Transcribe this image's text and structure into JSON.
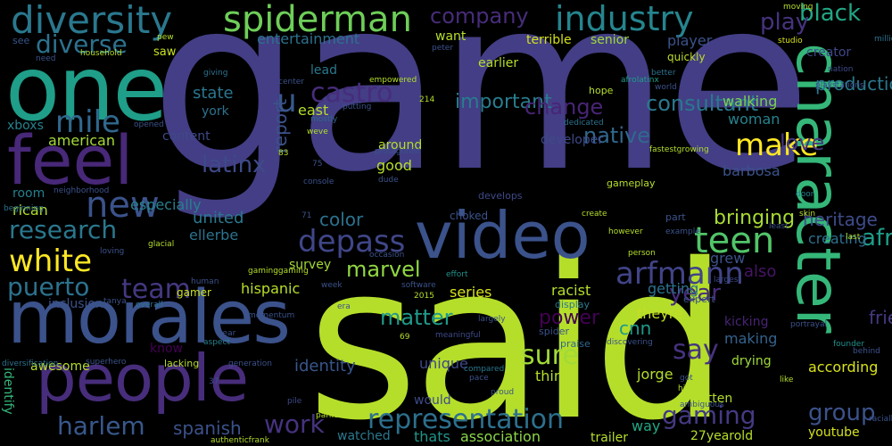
{
  "background": "#000000",
  "palette": [
    "#46327e",
    "#3b528b",
    "#365c8d",
    "#2c728e",
    "#21908d",
    "#1fa187",
    "#35b779",
    "#6ece58",
    "#b5de2b",
    "#d0e11c",
    "#440154",
    "#482878"
  ],
  "words": [
    {
      "id": "game",
      "text": "game",
      "color": "#433e85"
    },
    {
      "id": "said",
      "text": "said",
      "color": "#b5de2b"
    },
    {
      "id": "video",
      "text": "video",
      "color": "#3b528b"
    },
    {
      "id": "one",
      "text": "one",
      "color": "#1f9e89"
    },
    {
      "id": "morales",
      "text": "morales",
      "color": "#3b528b"
    },
    {
      "id": "people",
      "text": "people",
      "color": "#472d7b"
    },
    {
      "id": "character",
      "text": "character",
      "color": "#35b779"
    },
    {
      "id": "feel",
      "text": "feel",
      "color": "#482878"
    },
    {
      "id": "diversity",
      "text": "diversity",
      "color": "#2a788e"
    },
    {
      "id": "spiderman",
      "text": "spiderman",
      "color": "#6ece58"
    },
    {
      "id": "industry",
      "text": "industry",
      "color": "#25858e"
    },
    {
      "id": "diverse",
      "text": "diverse",
      "color": "#2c728e"
    },
    {
      "id": "company",
      "text": "company",
      "color": "#472c7a"
    },
    {
      "id": "play",
      "text": "play",
      "color": "#46337e"
    },
    {
      "id": "black",
      "text": "black",
      "color": "#22a785"
    },
    {
      "id": "mile",
      "text": "mile",
      "color": "#31688e"
    },
    {
      "id": "castro",
      "text": "castro",
      "color": "#472d7b"
    },
    {
      "id": "u",
      "text": "u",
      "color": "#38598c"
    },
    {
      "id": "make",
      "text": "make",
      "color": "#fde725"
    },
    {
      "id": "new",
      "text": "new",
      "color": "#3b528b"
    },
    {
      "id": "latinx",
      "text": "latinx",
      "color": "#3e4a89"
    },
    {
      "id": "depass",
      "text": "depass",
      "color": "#404688"
    },
    {
      "id": "teen",
      "text": "teen",
      "color": "#52c569"
    },
    {
      "id": "research",
      "text": "research",
      "color": "#2a788e"
    },
    {
      "id": "white",
      "text": "white",
      "color": "#fde725"
    },
    {
      "id": "marvel",
      "text": "marvel",
      "color": "#90d743"
    },
    {
      "id": "arfmann",
      "text": "arfmann",
      "color": "#414487"
    },
    {
      "id": "year",
      "text": "year",
      "color": "#472c7a"
    },
    {
      "id": "puerto",
      "text": "puerto",
      "color": "#2c728e"
    },
    {
      "id": "team",
      "text": "team",
      "color": "#453882"
    },
    {
      "id": "representation",
      "text": "representation",
      "color": "#2d708e"
    },
    {
      "id": "gaming",
      "text": "gaming",
      "color": "#443a83"
    },
    {
      "id": "group",
      "text": "group",
      "color": "#3b528b"
    },
    {
      "id": "work",
      "text": "work",
      "color": "#46327e"
    },
    {
      "id": "harlem",
      "text": "harlem",
      "color": "#38588c"
    },
    {
      "id": "spanish",
      "text": "spanish",
      "color": "#3b528b"
    },
    {
      "id": "love",
      "text": "love",
      "color": "#453781"
    },
    {
      "id": "afrolatinx",
      "text": "afrolatinx",
      "color": "#1f9e89"
    },
    {
      "id": "consultant",
      "text": "consultant",
      "color": "#2a788e"
    },
    {
      "id": "sure",
      "text": "sure",
      "color": "#a2da37"
    },
    {
      "id": "say",
      "text": "say",
      "color": "#46337e"
    },
    {
      "id": "important",
      "text": "important",
      "color": "#287d8e"
    },
    {
      "id": "change",
      "text": "change",
      "color": "#482576"
    },
    {
      "id": "native",
      "text": "native",
      "color": "#31688e"
    },
    {
      "id": "matter",
      "text": "matter",
      "color": "#1f9a8a"
    },
    {
      "id": "power",
      "text": "power",
      "color": "#440154"
    },
    {
      "id": "hispanic",
      "text": "hispanic",
      "color": "#b8de29"
    },
    {
      "id": "bringing",
      "text": "bringing",
      "color": "#a8db34"
    },
    {
      "id": "heritage",
      "text": "heritage",
      "color": "#3e4c8a"
    },
    {
      "id": "production",
      "text": "production",
      "color": "#2a788e"
    },
    {
      "id": "friendly",
      "text": "friendly",
      "color": "#443a83"
    },
    {
      "id": "according",
      "text": "according",
      "color": "#d8e219"
    },
    {
      "id": "color",
      "text": "color",
      "color": "#2c728e"
    },
    {
      "id": "united",
      "text": "united",
      "color": "#2a788e"
    },
    {
      "id": "ellerbe",
      "text": "ellerbe",
      "color": "#2c738e"
    },
    {
      "id": "entertainment",
      "text": "entertainment",
      "color": "#2c728e"
    },
    {
      "id": "state",
      "text": "state",
      "color": "#2a768e"
    },
    {
      "id": "american",
      "text": "american",
      "color": "#a5db36"
    },
    {
      "id": "content",
      "text": "content",
      "color": "#3e4989"
    },
    {
      "id": "especially",
      "text": "especially",
      "color": "#27808e"
    },
    {
      "id": "rican",
      "text": "rican",
      "color": "#b2dd2d"
    },
    {
      "id": "room",
      "text": "room",
      "color": "#26818e"
    },
    {
      "id": "inclusion",
      "text": "inclusion",
      "color": "#3b528b"
    },
    {
      "id": "identify",
      "text": "identify",
      "color": "#35b779"
    },
    {
      "id": "awesome",
      "text": "awesome",
      "color": "#b5de2b"
    },
    {
      "id": "thats",
      "text": "thats",
      "color": "#1f958b"
    },
    {
      "id": "association",
      "text": "association",
      "color": "#8bd646"
    },
    {
      "id": "good",
      "text": "good",
      "color": "#b5de2b"
    },
    {
      "id": "report",
      "text": "report",
      "color": "#3b528b"
    },
    {
      "id": "east",
      "text": "east",
      "color": "#b5de2b"
    },
    {
      "id": "lead",
      "text": "lead",
      "color": "#2a788e"
    },
    {
      "id": "terrible",
      "text": "terrible",
      "color": "#d5e21a"
    },
    {
      "id": "senior",
      "text": "senior",
      "color": "#a0da39"
    },
    {
      "id": "player",
      "text": "player",
      "color": "#3b528b"
    },
    {
      "id": "creator",
      "text": "creator",
      "color": "#3f4889"
    },
    {
      "id": "quickly",
      "text": "quickly",
      "color": "#bddf26"
    },
    {
      "id": "woman",
      "text": "woman",
      "color": "#26828e"
    },
    {
      "id": "walking",
      "text": "walking",
      "color": "#7ad151"
    },
    {
      "id": "barbosa",
      "text": "barbosa",
      "color": "#3b528b"
    },
    {
      "id": "creating",
      "text": "creating",
      "color": "#2e6f8e"
    },
    {
      "id": "making",
      "text": "making",
      "color": "#33638d"
    },
    {
      "id": "getting",
      "text": "getting",
      "color": "#2c728e"
    },
    {
      "id": "racist",
      "text": "racist",
      "color": "#b5de2b"
    },
    {
      "id": "cnn",
      "text": "cnn",
      "color": "#1f988b"
    },
    {
      "id": "theyre",
      "text": "theyre",
      "color": "#c2df23"
    },
    {
      "id": "series",
      "text": "series",
      "color": "#d8e219"
    },
    {
      "id": "also",
      "text": "also",
      "color": "#481467"
    },
    {
      "id": "identity",
      "text": "identity",
      "color": "#39568c"
    },
    {
      "id": "unique",
      "text": "unique",
      "color": "#3f4788"
    },
    {
      "id": "think",
      "text": "think",
      "color": "#b5de2b"
    },
    {
      "id": "way",
      "text": "way",
      "color": "#22a884"
    },
    {
      "id": "jorge",
      "text": "jorge",
      "color": "#b5de2b"
    },
    {
      "id": "drying",
      "text": "drying",
      "color": "#a0da39"
    },
    {
      "id": "bitten",
      "text": "bitten",
      "color": "#b5de2b"
    },
    {
      "id": "kicking",
      "text": "kicking",
      "color": "#482475"
    },
    {
      "id": "youtube",
      "text": "youtube",
      "color": "#d5e21a"
    },
    {
      "id": "27yearold",
      "text": "27yearold",
      "color": "#b5de2b"
    },
    {
      "id": "trailer",
      "text": "trailer",
      "color": "#b5de2b"
    },
    {
      "id": "would",
      "text": "would",
      "color": "#3e4a89"
    },
    {
      "id": "gamer",
      "text": "gamer",
      "color": "#cae11f"
    },
    {
      "id": "survey",
      "text": "survey",
      "color": "#a2da37"
    },
    {
      "id": "see",
      "text": "see",
      "color": "#39568c"
    },
    {
      "id": "saw",
      "text": "saw",
      "color": "#c8e020"
    },
    {
      "id": "want",
      "text": "want",
      "color": "#b5de2b"
    },
    {
      "id": "earlier",
      "text": "earlier",
      "color": "#b5de2b"
    },
    {
      "id": "xboxs",
      "text": "xboxs",
      "color": "#26828e"
    },
    {
      "id": "around",
      "text": "around",
      "color": "#b5de2b"
    },
    {
      "id": "developer",
      "text": "developer",
      "color": "#3e4a89"
    },
    {
      "id": "mostly",
      "text": "mostly",
      "color": "#31688e"
    },
    {
      "id": "york",
      "text": "york",
      "color": "#2c738e"
    },
    {
      "id": "person",
      "text": "person",
      "color": "#b5de2b"
    },
    {
      "id": "chose",
      "text": "chose",
      "color": "#b5de2b"
    },
    {
      "id": "nation",
      "text": "nation",
      "color": "#3e4a89"
    },
    {
      "id": "studio",
      "text": "studio",
      "color": "#d8e219"
    },
    {
      "id": "moving",
      "text": "moving",
      "color": "#b5de2b"
    },
    {
      "id": "spider",
      "text": "spider",
      "color": "#3b528b"
    },
    {
      "id": "praise",
      "text": "praise",
      "color": "#31688e"
    },
    {
      "id": "software",
      "text": "software",
      "color": "#3b528b"
    },
    {
      "id": "effort",
      "text": "effort",
      "color": "#21918c"
    },
    {
      "id": "aspect",
      "text": "aspect",
      "color": "#27808e"
    },
    {
      "id": "tear",
      "text": "tear",
      "color": "#3b528b"
    },
    {
      "id": "superhero",
      "text": "superhero",
      "color": "#3b528b"
    },
    {
      "id": "lacking",
      "text": "lacking",
      "color": "#b5de2b"
    },
    {
      "id": "generation",
      "text": "generation",
      "color": "#3b528b"
    },
    {
      "id": "gameplay",
      "text": "gameplay",
      "color": "#b5de2b"
    },
    {
      "id": "display",
      "text": "display",
      "color": "#2a788e"
    },
    {
      "id": "expert",
      "text": "expert",
      "color": "#3b528b"
    },
    {
      "id": "portrayal",
      "text": "portrayal",
      "color": "#3b528b"
    },
    {
      "id": "better",
      "text": "better",
      "color": "#2c728e"
    },
    {
      "id": "world",
      "text": "world",
      "color": "#3b528b"
    },
    {
      "id": "hope",
      "text": "hope",
      "color": "#b5de2b"
    },
    {
      "id": "door",
      "text": "door",
      "color": "#26828e"
    },
    {
      "id": "founder",
      "text": "founder",
      "color": "#21918c"
    },
    {
      "id": "largest",
      "text": "largest",
      "color": "#3e4a89"
    },
    {
      "id": "grew",
      "text": "grew",
      "color": "#3b528b"
    },
    {
      "id": "proud",
      "text": "proud",
      "color": "#3b528b"
    },
    {
      "id": "compared",
      "text": "compared",
      "color": "#2a788e"
    },
    {
      "id": "pace",
      "text": "pace",
      "color": "#3b528b"
    },
    {
      "id": "parker",
      "text": "parker",
      "color": "#b5de2b"
    },
    {
      "id": "pile",
      "text": "pile",
      "color": "#3e4a89"
    },
    {
      "id": "watched",
      "text": "watched",
      "color": "#2a788e"
    },
    {
      "id": "authenticfrank",
      "text": "authenticfrank",
      "color": "#b5de2b"
    },
    {
      "id": "diversification",
      "text": "diversification",
      "color": "#2c728e"
    },
    {
      "id": "beginning",
      "text": "beginning",
      "color": "#2c728e"
    },
    {
      "id": "neighborhood",
      "text": "neighborhood",
      "color": "#3b528b"
    },
    {
      "id": "human",
      "text": "human",
      "color": "#3b528b"
    },
    {
      "id": "tanya",
      "text": "tanya",
      "color": "#3b528b"
    },
    {
      "id": "overall",
      "text": "overall",
      "color": "#2c728e"
    },
    {
      "id": "momentum",
      "text": "momentum",
      "color": "#3b528b"
    },
    {
      "id": "2015",
      "text": "2015",
      "color": "#b5de2b"
    },
    {
      "id": "meaningful",
      "text": "meaningful",
      "color": "#3e4a89"
    },
    {
      "id": "need",
      "text": "need",
      "color": "#3b528b"
    },
    {
      "id": "household",
      "text": "household",
      "color": "#b5de2b"
    },
    {
      "id": "pew",
      "text": "pew",
      "color": "#b5de2b"
    },
    {
      "id": "peter",
      "text": "peter",
      "color": "#3b528b"
    },
    {
      "id": "empowered",
      "text": "empowered",
      "color": "#b5de2b"
    },
    {
      "id": "giving",
      "text": "giving",
      "color": "#2c728e"
    },
    {
      "id": "putting",
      "text": "putting",
      "color": "#3b528b"
    },
    {
      "id": "center",
      "text": "center",
      "color": "#3b528b"
    },
    {
      "id": "weve",
      "text": "weve",
      "color": "#b5de2b"
    },
    {
      "id": "opened",
      "text": "opened",
      "color": "#3b528b"
    },
    {
      "id": "83",
      "text": "83",
      "color": "#b5de2b"
    },
    {
      "id": "75",
      "text": "75",
      "color": "#3b528b"
    },
    {
      "id": "214",
      "text": "214",
      "color": "#b5de2b"
    },
    {
      "id": "dedicated",
      "text": "dedicated",
      "color": "#2c728e"
    },
    {
      "id": "protagonist",
      "text": "protagonist",
      "color": "#3b528b"
    },
    {
      "id": "console",
      "text": "console",
      "color": "#3b528b"
    },
    {
      "id": "develops",
      "text": "develops",
      "color": "#3e4a89"
    },
    {
      "id": "fastestgrowing",
      "text": "fastestgrowing",
      "color": "#b5de2b"
    },
    {
      "id": "choked",
      "text": "choked",
      "color": "#3b528b"
    },
    {
      "id": "glacial",
      "text": "glacial",
      "color": "#b5de2b"
    },
    {
      "id": "loving",
      "text": "loving",
      "color": "#3b528b"
    },
    {
      "id": "occasion",
      "text": "occasion",
      "color": "#3b528b"
    },
    {
      "id": "gaminggaming",
      "text": "gaminggaming",
      "color": "#b5de2b"
    },
    {
      "id": "era",
      "text": "era",
      "color": "#3b528b"
    },
    {
      "id": "largely",
      "text": "largely",
      "color": "#3b528b"
    },
    {
      "id": "discovering",
      "text": "discovering",
      "color": "#3b528b"
    },
    {
      "id": "example",
      "text": "example",
      "color": "#3b528b"
    },
    {
      "id": "however",
      "text": "however",
      "color": "#b5de2b"
    },
    {
      "id": "create",
      "text": "create",
      "color": "#b5de2b"
    },
    {
      "id": "part",
      "text": "part",
      "color": "#3b528b"
    },
    {
      "id": "skin",
      "text": "skin",
      "color": "#b5de2b"
    },
    {
      "id": "least",
      "text": "least",
      "color": "#3b528b"
    },
    {
      "id": "last",
      "text": "last",
      "color": "#b5de2b"
    },
    {
      "id": "million",
      "text": "million",
      "color": "#2c728e"
    },
    {
      "id": "week",
      "text": "week",
      "color": "#3b528b"
    },
    {
      "id": "racially",
      "text": "racially",
      "color": "#3b528b"
    },
    {
      "id": "behind",
      "text": "behind",
      "color": "#3b528b"
    },
    {
      "id": "like",
      "text": "like",
      "color": "#b5de2b"
    },
    {
      "id": "got",
      "text": "got",
      "color": "#3b528b"
    },
    {
      "id": "hide",
      "text": "hide",
      "color": "#b5de2b"
    },
    {
      "id": "ambiguous",
      "text": "ambiguous",
      "color": "#3b528b"
    },
    {
      "id": "know",
      "text": "know",
      "color": "#440154"
    },
    {
      "id": "69",
      "text": "69",
      "color": "#b5de2b"
    },
    {
      "id": "37",
      "text": "37",
      "color": "#3b528b"
    },
    {
      "id": "71",
      "text": "71",
      "color": "#3b528b"
    },
    {
      "id": "dude",
      "text": "dude",
      "color": "#3b528b"
    },
    {
      "id": "playstations",
      "text": "playstations",
      "color": "#3b528b"
    }
  ]
}
